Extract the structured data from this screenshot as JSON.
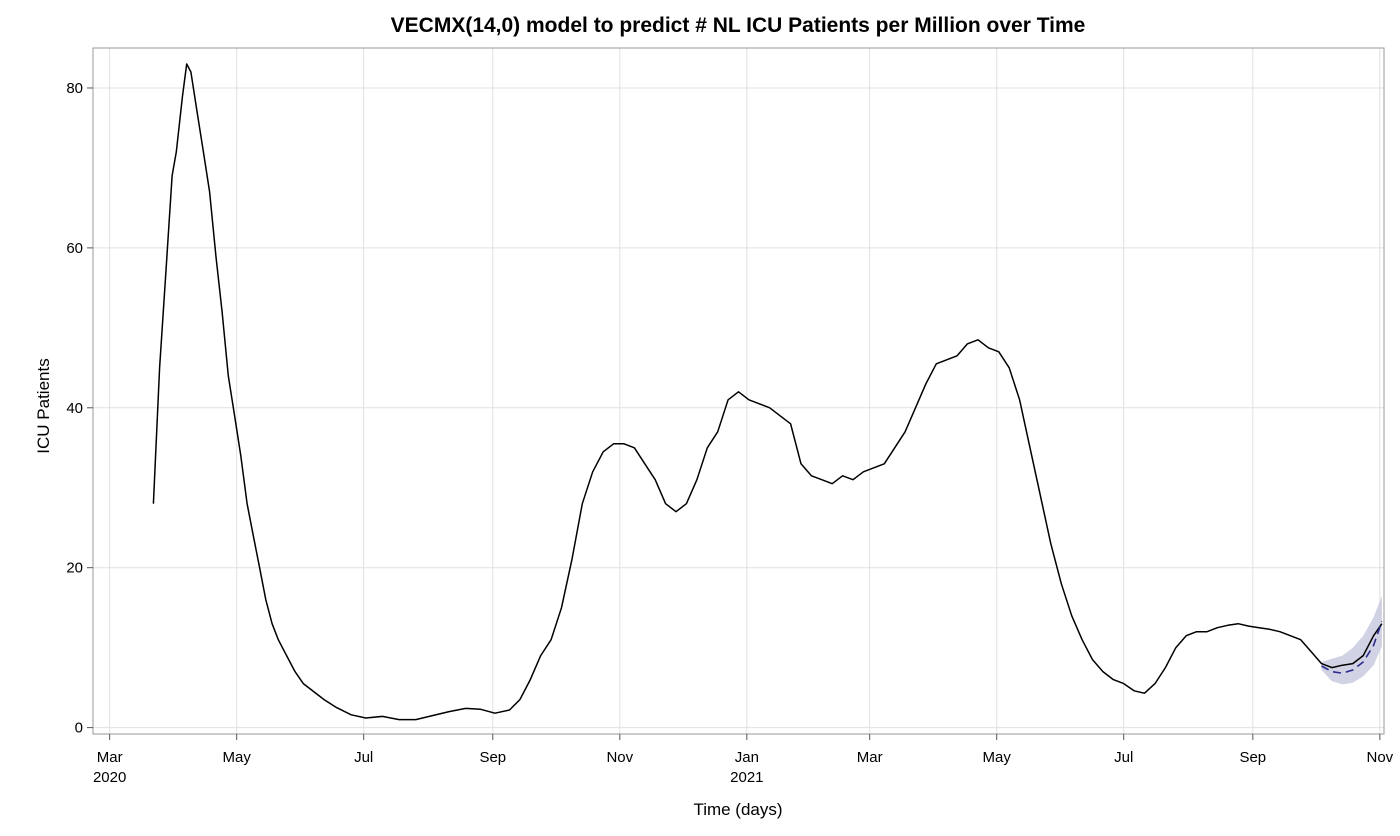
{
  "chart_data": {
    "type": "line",
    "title": "VECMX(14,0) model to predict # NL ICU Patients per Million over Time",
    "xlabel": "Time (days)",
    "ylabel": "ICU Patients",
    "x_range": [
      "2020-02-22",
      "2021-11-03"
    ],
    "ylim": [
      -0.8,
      85
    ],
    "y_ticks": [
      0,
      20,
      40,
      60,
      80
    ],
    "x_ticks": [
      {
        "date": "2020-03-01",
        "label": "Mar",
        "year": "2020"
      },
      {
        "date": "2020-05-01",
        "label": "May",
        "year": ""
      },
      {
        "date": "2020-07-01",
        "label": "Jul",
        "year": ""
      },
      {
        "date": "2020-09-01",
        "label": "Sep",
        "year": ""
      },
      {
        "date": "2020-11-01",
        "label": "Nov",
        "year": ""
      },
      {
        "date": "2021-01-01",
        "label": "Jan",
        "year": "2021"
      },
      {
        "date": "2021-03-01",
        "label": "Mar",
        "year": ""
      },
      {
        "date": "2021-05-01",
        "label": "May",
        "year": ""
      },
      {
        "date": "2021-07-01",
        "label": "Jul",
        "year": ""
      },
      {
        "date": "2021-09-01",
        "label": "Sep",
        "year": ""
      },
      {
        "date": "2021-11-01",
        "label": "Nov",
        "year": ""
      }
    ],
    "grid": true,
    "series": [
      {
        "style": "solid",
        "color": "#000000",
        "points": [
          [
            "2020-03-22",
            28
          ],
          [
            "2020-03-25",
            45
          ],
          [
            "2020-03-28",
            57
          ],
          [
            "2020-03-31",
            69
          ],
          [
            "2020-04-02",
            72
          ],
          [
            "2020-04-05",
            79
          ],
          [
            "2020-04-07",
            83
          ],
          [
            "2020-04-09",
            82
          ],
          [
            "2020-04-12",
            77
          ],
          [
            "2020-04-15",
            72
          ],
          [
            "2020-04-18",
            67
          ],
          [
            "2020-04-21",
            59
          ],
          [
            "2020-04-24",
            52
          ],
          [
            "2020-04-27",
            44
          ],
          [
            "2020-04-30",
            39
          ],
          [
            "2020-05-03",
            34
          ],
          [
            "2020-05-06",
            28
          ],
          [
            "2020-05-09",
            24
          ],
          [
            "2020-05-12",
            20
          ],
          [
            "2020-05-15",
            16
          ],
          [
            "2020-05-18",
            13
          ],
          [
            "2020-05-21",
            11
          ],
          [
            "2020-05-25",
            9
          ],
          [
            "2020-05-29",
            7
          ],
          [
            "2020-06-02",
            5.5
          ],
          [
            "2020-06-07",
            4.5
          ],
          [
            "2020-06-12",
            3.5
          ],
          [
            "2020-06-18",
            2.5
          ],
          [
            "2020-06-25",
            1.6
          ],
          [
            "2020-07-02",
            1.2
          ],
          [
            "2020-07-10",
            1.4
          ],
          [
            "2020-07-18",
            1.0
          ],
          [
            "2020-07-26",
            1.0
          ],
          [
            "2020-08-03",
            1.5
          ],
          [
            "2020-08-11",
            2.0
          ],
          [
            "2020-08-19",
            2.4
          ],
          [
            "2020-08-26",
            2.3
          ],
          [
            "2020-09-02",
            1.8
          ],
          [
            "2020-09-09",
            2.2
          ],
          [
            "2020-09-14",
            3.5
          ],
          [
            "2020-09-19",
            6
          ],
          [
            "2020-09-24",
            9
          ],
          [
            "2020-09-29",
            11
          ],
          [
            "2020-10-04",
            15
          ],
          [
            "2020-10-09",
            21
          ],
          [
            "2020-10-14",
            28
          ],
          [
            "2020-10-19",
            32
          ],
          [
            "2020-10-24",
            34.5
          ],
          [
            "2020-10-29",
            35.5
          ],
          [
            "2020-11-03",
            35.5
          ],
          [
            "2020-11-08",
            35
          ],
          [
            "2020-11-13",
            33
          ],
          [
            "2020-11-18",
            31
          ],
          [
            "2020-11-23",
            28
          ],
          [
            "2020-11-28",
            27
          ],
          [
            "2020-12-03",
            28
          ],
          [
            "2020-12-08",
            31
          ],
          [
            "2020-12-13",
            35
          ],
          [
            "2020-12-18",
            37
          ],
          [
            "2020-12-23",
            41
          ],
          [
            "2020-12-28",
            42
          ],
          [
            "2021-01-02",
            41
          ],
          [
            "2021-01-07",
            40.5
          ],
          [
            "2021-01-12",
            40
          ],
          [
            "2021-01-17",
            39
          ],
          [
            "2021-01-22",
            38
          ],
          [
            "2021-01-27",
            33
          ],
          [
            "2021-02-01",
            31.5
          ],
          [
            "2021-02-06",
            31
          ],
          [
            "2021-02-11",
            30.5
          ],
          [
            "2021-02-16",
            31.5
          ],
          [
            "2021-02-21",
            31
          ],
          [
            "2021-02-26",
            32
          ],
          [
            "2021-03-03",
            32.5
          ],
          [
            "2021-03-08",
            33
          ],
          [
            "2021-03-13",
            35
          ],
          [
            "2021-03-18",
            37
          ],
          [
            "2021-03-23",
            40
          ],
          [
            "2021-03-28",
            43
          ],
          [
            "2021-04-02",
            45.5
          ],
          [
            "2021-04-07",
            46
          ],
          [
            "2021-04-12",
            46.5
          ],
          [
            "2021-04-17",
            48
          ],
          [
            "2021-04-22",
            48.5
          ],
          [
            "2021-04-27",
            47.5
          ],
          [
            "2021-05-02",
            47
          ],
          [
            "2021-05-07",
            45
          ],
          [
            "2021-05-12",
            41
          ],
          [
            "2021-05-17",
            35
          ],
          [
            "2021-05-22",
            29
          ],
          [
            "2021-05-27",
            23
          ],
          [
            "2021-06-01",
            18
          ],
          [
            "2021-06-06",
            14
          ],
          [
            "2021-06-11",
            11
          ],
          [
            "2021-06-16",
            8.5
          ],
          [
            "2021-06-21",
            7
          ],
          [
            "2021-06-26",
            6
          ],
          [
            "2021-07-01",
            5.5
          ],
          [
            "2021-07-06",
            4.6
          ],
          [
            "2021-07-11",
            4.3
          ],
          [
            "2021-07-16",
            5.5
          ],
          [
            "2021-07-21",
            7.5
          ],
          [
            "2021-07-26",
            10
          ],
          [
            "2021-07-31",
            11.5
          ],
          [
            "2021-08-05",
            12
          ],
          [
            "2021-08-10",
            12
          ],
          [
            "2021-08-15",
            12.5
          ],
          [
            "2021-08-20",
            12.8
          ],
          [
            "2021-08-25",
            13
          ],
          [
            "2021-08-30",
            12.7
          ],
          [
            "2021-09-04",
            12.5
          ],
          [
            "2021-09-09",
            12.3
          ],
          [
            "2021-09-14",
            12
          ],
          [
            "2021-09-19",
            11.5
          ],
          [
            "2021-09-24",
            11
          ],
          [
            "2021-09-29",
            9.5
          ],
          [
            "2021-10-04",
            8
          ],
          [
            "2021-10-09",
            7.5
          ],
          [
            "2021-10-14",
            7.8
          ],
          [
            "2021-10-19",
            8
          ],
          [
            "2021-10-24",
            9
          ],
          [
            "2021-10-29",
            11.5
          ],
          [
            "2021-11-02",
            13
          ]
        ]
      },
      {
        "style": "dashed",
        "color": "#2b2b8c",
        "points": [
          [
            "2021-10-04",
            7.7
          ],
          [
            "2021-10-09",
            7.0
          ],
          [
            "2021-10-14",
            6.8
          ],
          [
            "2021-10-19",
            7.2
          ],
          [
            "2021-10-24",
            8.2
          ],
          [
            "2021-10-29",
            10.3
          ],
          [
            "2021-11-02",
            13.3
          ]
        ]
      }
    ],
    "confidence_band": {
      "color": "#c9cadf",
      "upper": [
        [
          "2021-10-04",
          8.2
        ],
        [
          "2021-10-09",
          8.6
        ],
        [
          "2021-10-14",
          9.0
        ],
        [
          "2021-10-19",
          10.0
        ],
        [
          "2021-10-24",
          11.5
        ],
        [
          "2021-10-29",
          13.8
        ],
        [
          "2021-11-02",
          16.5
        ]
      ],
      "lower": [
        [
          "2021-10-04",
          7.2
        ],
        [
          "2021-10-09",
          5.8
        ],
        [
          "2021-10-14",
          5.4
        ],
        [
          "2021-10-19",
          5.6
        ],
        [
          "2021-10-24",
          6.4
        ],
        [
          "2021-10-29",
          7.8
        ],
        [
          "2021-11-02",
          10.2
        ]
      ]
    }
  }
}
